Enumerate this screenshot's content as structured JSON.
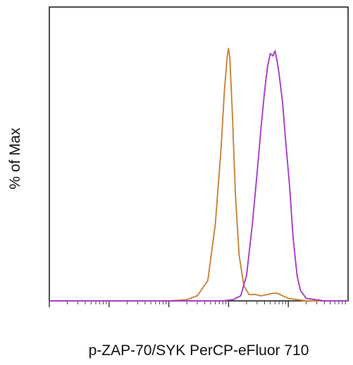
{
  "chart_data": {
    "type": "line",
    "title": "",
    "xlabel": "p-ZAP-70/SYK PerCP-eFluor 710",
    "ylabel": "% of Max",
    "scale_x": "log",
    "xlim": [
      1,
      100000
    ],
    "ylim": [
      0,
      100
    ],
    "grid": false,
    "legend": "none",
    "series": [
      {
        "color": "#c8843a",
        "x": [
          1,
          100,
          200,
          300,
          450,
          600,
          750,
          850,
          950,
          1000,
          1050,
          1150,
          1300,
          1500,
          1800,
          2200,
          2800,
          3500,
          4500,
          5500,
          6500,
          8000,
          10000,
          20000,
          100000
        ],
        "y": [
          0,
          0,
          0.5,
          2,
          8,
          30,
          60,
          82,
          96,
          99,
          95,
          75,
          42,
          18,
          6,
          2.5,
          2.5,
          2,
          2.5,
          3,
          3,
          2,
          1,
          0,
          0
        ]
      },
      {
        "color": "#a83cc6",
        "x": [
          1,
          800,
          1200,
          1600,
          2000,
          2500,
          3000,
          3500,
          4000,
          4500,
          5000,
          5500,
          6000,
          6500,
          7000,
          8000,
          9000,
          10500,
          12000,
          14000,
          16000,
          20000,
          40000,
          100000
        ],
        "y": [
          0,
          0,
          0.5,
          2,
          10,
          30,
          50,
          68,
          82,
          92,
          97,
          96,
          98,
          94,
          89,
          78,
          63,
          45,
          25,
          10,
          4,
          1,
          0,
          0
        ]
      }
    ]
  }
}
